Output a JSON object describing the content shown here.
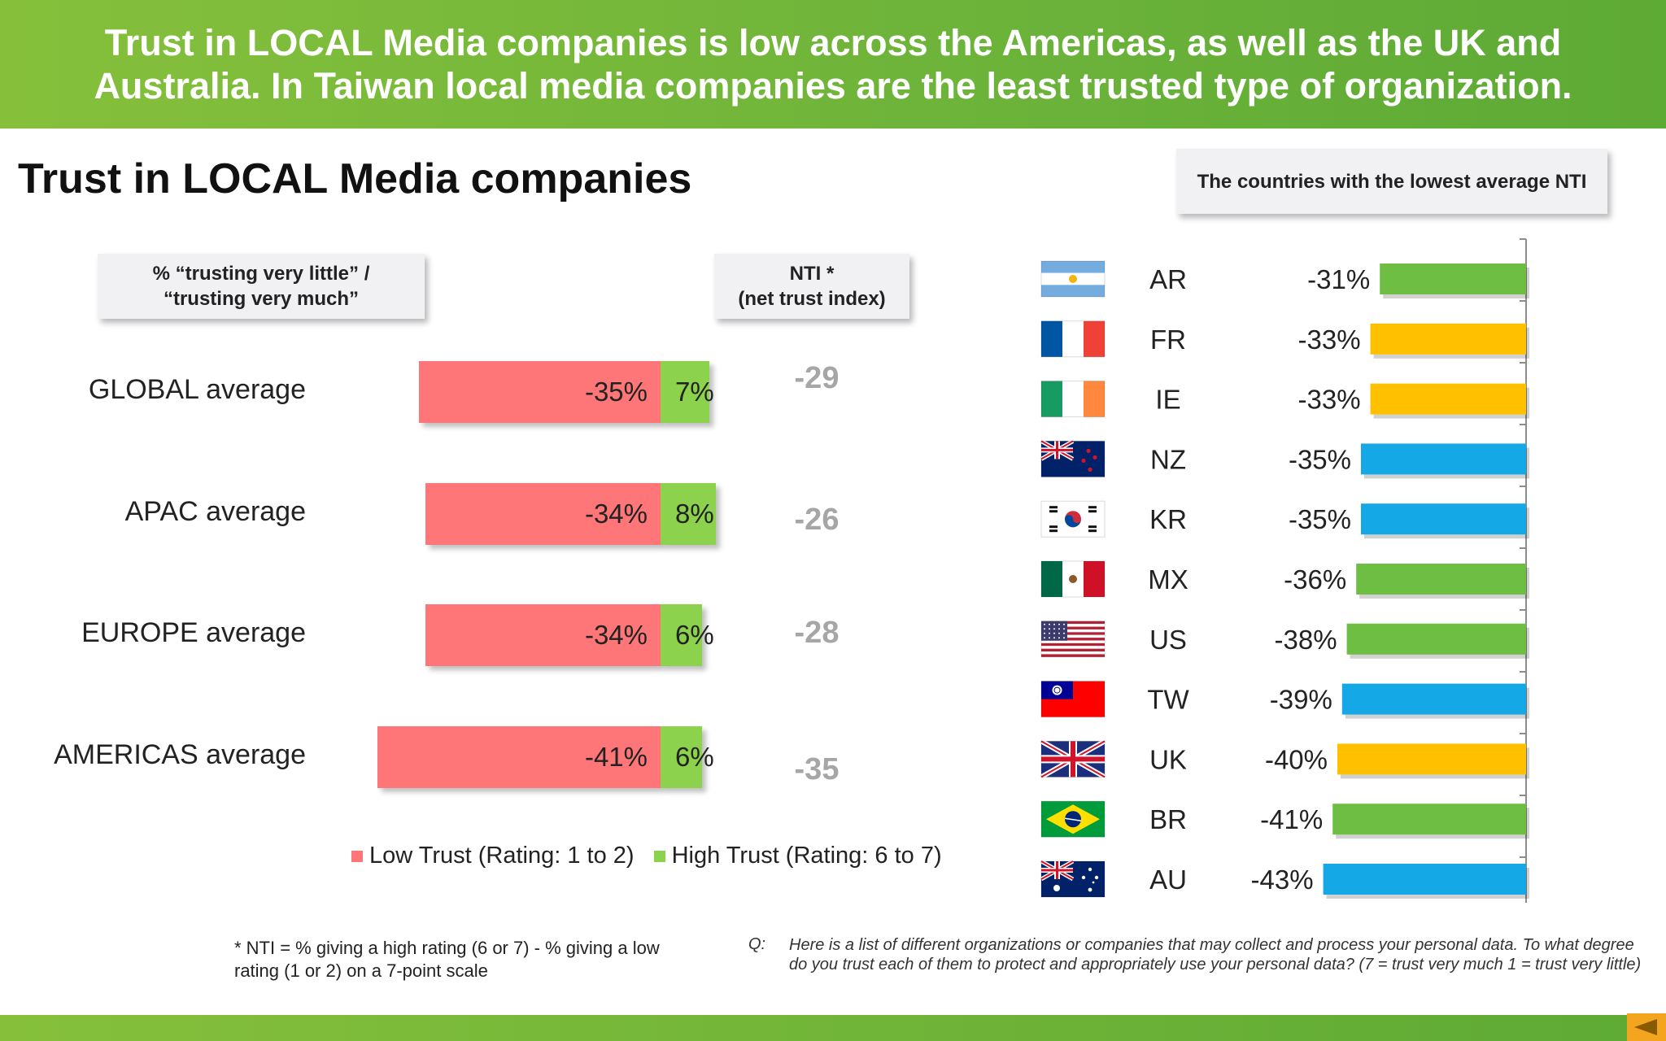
{
  "headline": "Trust in LOCAL Media companies is low across the Americas, as well as the UK and Australia. In Taiwan local media companies are the least trusted type of organization.",
  "section_title": "Trust in LOCAL Media companies",
  "boxes": {
    "pct": "% “trusting very  little” /\n“trusting very much”",
    "nti": "NTI *\n(net trust index)",
    "right": "The countries with the lowest average NTI"
  },
  "legend": {
    "low": "Low Trust (Rating: 1 to 2)",
    "high": "High Trust (Rating: 6 to 7)"
  },
  "colors": {
    "low": "#fe7677",
    "high": "#8cd24c",
    "americas": "#6fbe44",
    "europe": "#ffc000",
    "apac": "#14a9e6",
    "nti_text": "#a6a6a6",
    "banner": "#6cb33a"
  },
  "footnote": "* NTI = % giving a high rating (6 or 7) - % giving a low rating (1 or 2) on a 7-point scale",
  "question": {
    "label": "Q:",
    "text": "Here is a list of different organizations or companies that may collect and process your personal data.  To what degree do you trust each of them to protect and appropriately use your personal data? (7 = trust very much 1 = trust very little)"
  },
  "chart_data": [
    {
      "type": "bar",
      "orientation": "horizontal-stacked",
      "categories": [
        "GLOBAL average",
        "APAC average",
        "EUROPE average",
        "AMERICAS average"
      ],
      "series": [
        {
          "name": "Low Trust (Rating: 1 to 2)",
          "values": [
            -35,
            -34,
            -34,
            -41
          ],
          "labels": [
            "-35%",
            "-34%",
            "-34%",
            "-41%"
          ]
        },
        {
          "name": "High Trust (Rating: 6 to 7)",
          "values": [
            7,
            8,
            6,
            6
          ],
          "labels": [
            "7%",
            "8%",
            "6%",
            "6%"
          ]
        }
      ],
      "nti": [
        -29,
        -26,
        -28,
        -35
      ],
      "nti_labels": [
        "-29",
        "-26",
        "-28",
        "-35"
      ],
      "legend": "bottom"
    },
    {
      "type": "bar",
      "orientation": "horizontal",
      "title": "The countries with the lowest average NTI",
      "categories": [
        "AR",
        "FR",
        "IE",
        "NZ",
        "KR",
        "MX",
        "US",
        "TW",
        "UK",
        "BR",
        "AU"
      ],
      "values": [
        -31,
        -33,
        -33,
        -35,
        -35,
        -36,
        -38,
        -39,
        -40,
        -41,
        -43
      ],
      "labels": [
        "-31%",
        "-33%",
        "-33%",
        "-35%",
        "-35%",
        "-36%",
        "-38%",
        "-39%",
        "-40%",
        "-41%",
        "-43%"
      ],
      "regions": [
        "americas",
        "europe",
        "europe",
        "apac",
        "apac",
        "americas",
        "americas",
        "apac",
        "europe",
        "americas",
        "apac"
      ],
      "flags": [
        "argentina-flag",
        "france-flag",
        "ireland-flag",
        "new-zealand-flag",
        "south-korea-flag",
        "mexico-flag",
        "usa-flag",
        "taiwan-flag",
        "uk-flag",
        "brazil-flag",
        "australia-flag"
      ]
    }
  ]
}
